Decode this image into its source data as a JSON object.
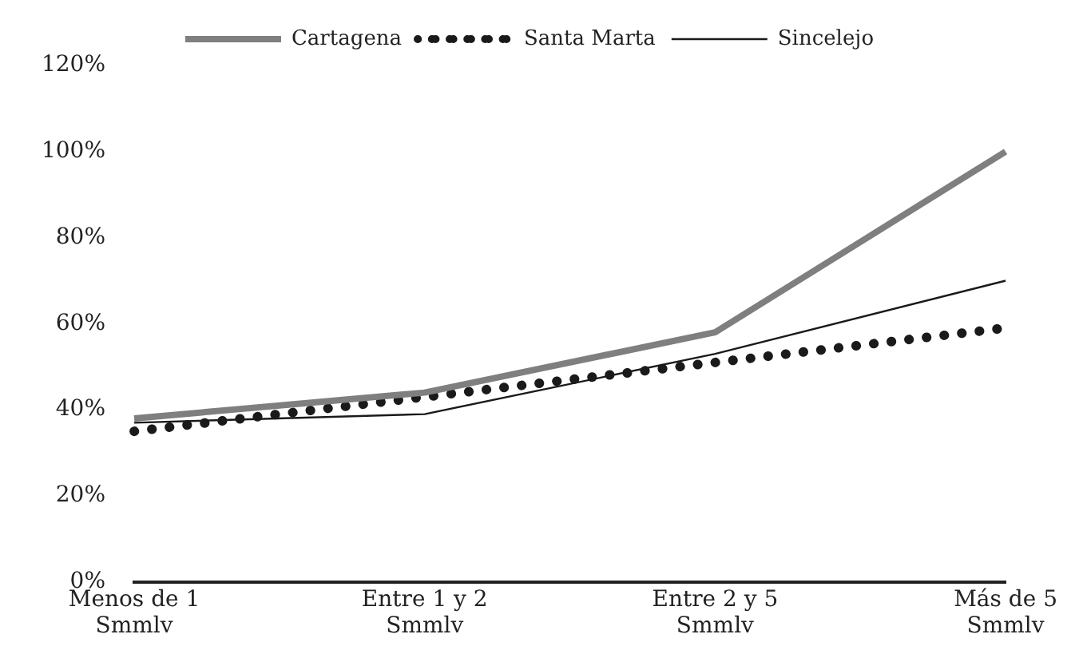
{
  "chart_data": {
    "type": "line",
    "categories": [
      "Menos de 1 Smmlv",
      "Entre 1 y 2 Smmlv",
      "Entre 2 y 5 Smmlv",
      "Más de 5 Smmlv"
    ],
    "series": [
      {
        "name": "Cartagena",
        "color": "#7f7f7f",
        "values": [
          38,
          44,
          58,
          100
        ],
        "line_style": "solid"
      },
      {
        "name": "Santa Marta",
        "color": "#1a1a1a",
        "values": [
          35,
          43,
          51,
          59
        ],
        "line_style": "dotted"
      },
      {
        "name": "Sincelejo",
        "color": "#1a1a1a",
        "values": [
          37,
          39,
          53,
          70
        ],
        "line_style": "solid"
      }
    ],
    "ylim": [
      0,
      120
    ],
    "yticks": [
      {
        "value": 0,
        "label": "0%"
      },
      {
        "value": 20,
        "label": "20%"
      },
      {
        "value": 40,
        "label": "40%"
      },
      {
        "value": 60,
        "label": "60%"
      },
      {
        "value": 80,
        "label": "80%"
      },
      {
        "value": 100,
        "label": "100%"
      },
      {
        "value": 120,
        "label": "120%"
      }
    ],
    "grid": false,
    "legend": "top",
    "marker": "none"
  }
}
